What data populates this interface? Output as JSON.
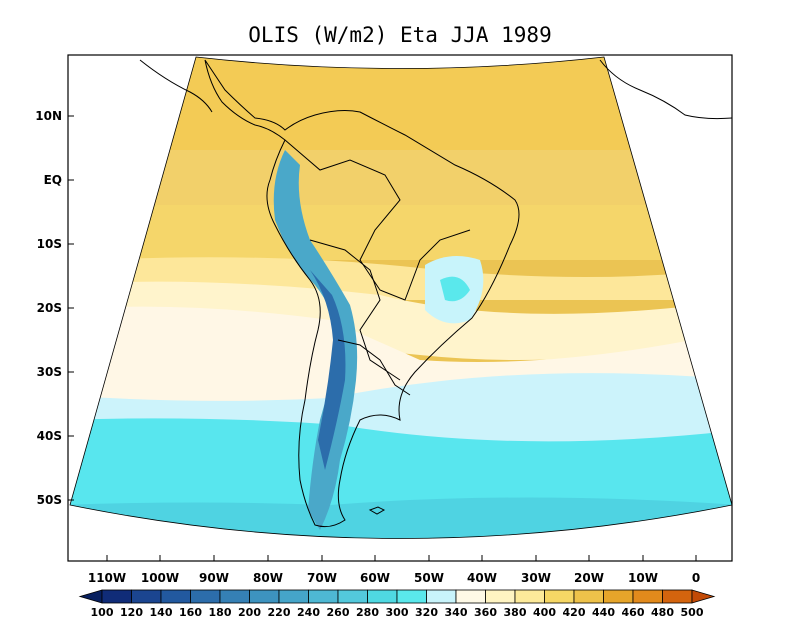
{
  "title": "OLIS (W/m2) Eta JJA 1989",
  "lat_labels": [
    "10N",
    "EQ",
    "10S",
    "20S",
    "30S",
    "40S",
    "50S"
  ],
  "lon_labels": [
    "110W",
    "100W",
    "90W",
    "80W",
    "70W",
    "60W",
    "50W",
    "40W",
    "30W",
    "20W",
    "10W",
    "0"
  ],
  "colorbar": {
    "labels": [
      "100",
      "120",
      "140",
      "160",
      "180",
      "200",
      "220",
      "240",
      "260",
      "280",
      "300",
      "320",
      "340",
      "360",
      "380",
      "400",
      "420",
      "440",
      "460",
      "480",
      "500"
    ],
    "colors": [
      "#08205f",
      "#102c78",
      "#1b4590",
      "#22599f",
      "#2c6dab",
      "#3580b5",
      "#3d93bf",
      "#45a5c9",
      "#4eb8d3",
      "#53c9dc",
      "#4fd9e2",
      "#5ae8ec",
      "#c8f4fb",
      "#fef9e6",
      "#fff4c2",
      "#fdea9a",
      "#f6d765",
      "#eec24a",
      "#e6a52a",
      "#e28a1c",
      "#d4640e",
      "#c24a06"
    ],
    "unit": "W/m2"
  },
  "map": {
    "region": "South America",
    "season": "JJA",
    "year": "1989",
    "model": "Eta"
  }
}
